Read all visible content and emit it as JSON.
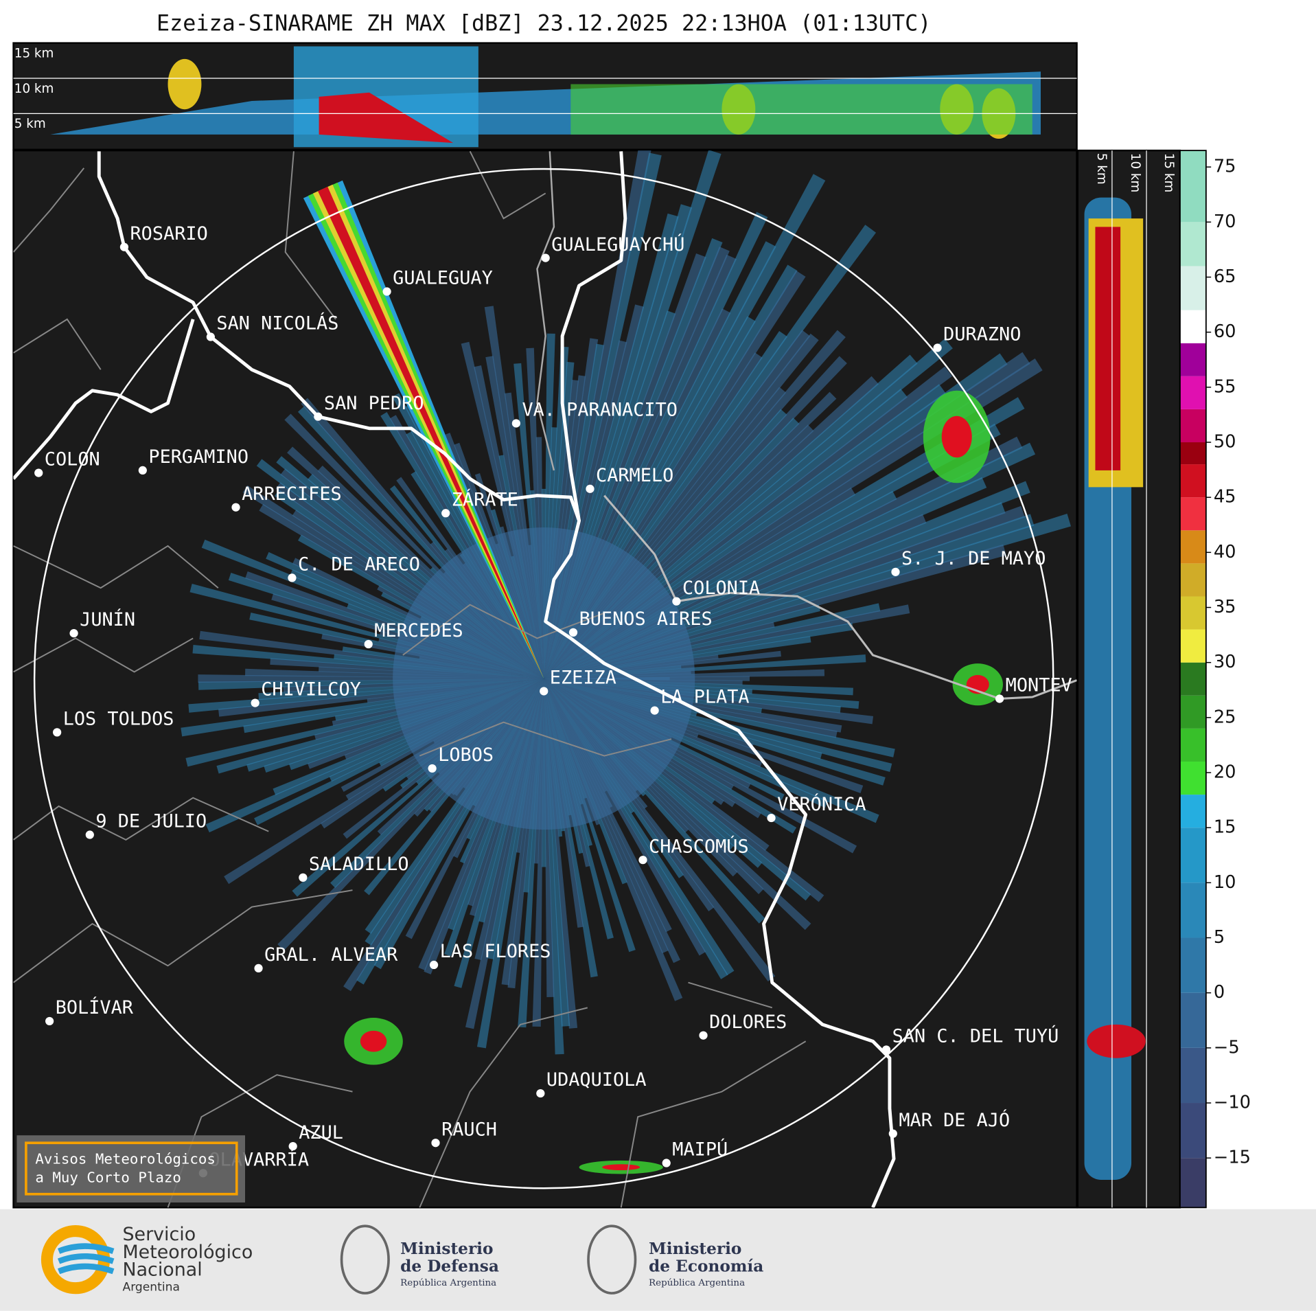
{
  "title": "Ezeiza-SINARAME ZH MAX [dBZ] 23.12.2025 22:13HOA (01:13UTC)",
  "height_labels_top": [
    "15 km",
    "10 km",
    "5 km"
  ],
  "height_labels_side": [
    "5 km",
    "10 km",
    "15 km"
  ],
  "cities": [
    "ROSARIO",
    "GUALEGUAYCHÚ",
    "GUALEGUAY",
    "SAN NICOLÁS",
    "DURAZNO",
    "SAN PEDRO",
    "VA. PARANACITO",
    "COLON",
    "PERGAMINO",
    "CARMELO",
    "ARRECIFES",
    "ZÁRATE",
    "S. J. DE MAYO",
    "C. DE ARECO",
    "COLONIA",
    "BUENOS AIRES",
    "JUNÍN",
    "MERCEDES",
    "EZEIZA",
    "CHIVILCOY",
    "MONTEV",
    "LA PLATA",
    "LOS TOLDOS",
    "LOBOS",
    "VERÓNICA",
    "9 DE JULIO",
    "CHASCOMÚS",
    "SALADILLO",
    "GRAL. ALVEAR",
    "LAS FLORES",
    "BOLÍVAR",
    "DOLORES",
    "SAN C. DEL TUYÚ",
    "UDAQUIOLA",
    "MAR DE AJÓ",
    "AZUL",
    "RAUCH",
    "MAIPÚ",
    "OLAVARRÍA"
  ],
  "colorbar": {
    "lim": [
      -19.5,
      76.5
    ],
    "ticks": [
      75,
      70,
      65,
      60,
      55,
      50,
      45,
      40,
      35,
      30,
      25,
      20,
      15,
      10,
      5,
      0,
      {
        "value": -5,
        "label": "−5"
      },
      {
        "value": -10,
        "label": "−10"
      },
      {
        "value": -15,
        "label": "−15"
      }
    ]
  },
  "notice": [
    "Avisos Meteorológicos",
    "a Muy Corto Plazo"
  ],
  "footer": {
    "smn": [
      "Servicio",
      "Meteorológico",
      "Nacional",
      "Argentina"
    ],
    "defensa": [
      "Ministerio",
      "de Defensa",
      "República Argentina"
    ],
    "economia": [
      "Ministerio",
      "de Economía",
      "República Argentina"
    ]
  }
}
